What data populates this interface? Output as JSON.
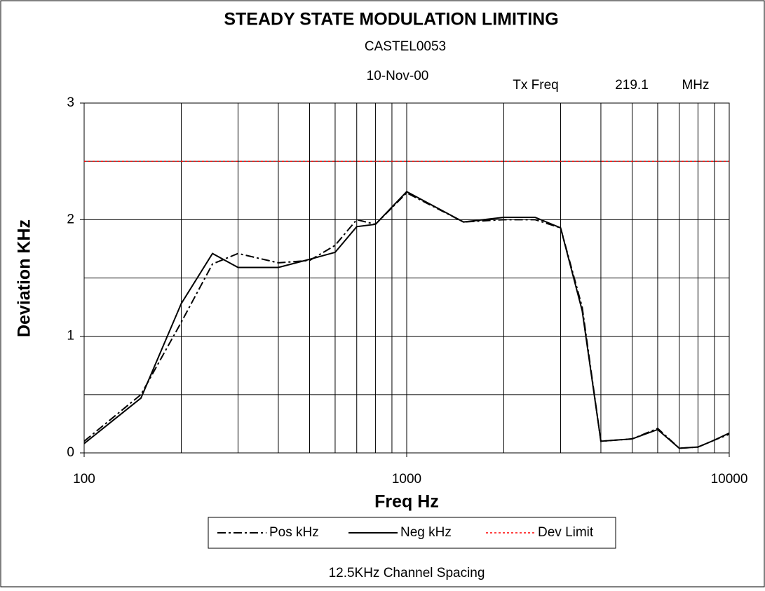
{
  "chart_data": {
    "type": "line",
    "title": "STEADY STATE MODULATION LIMITING",
    "subtitle": "CASTEL0053",
    "annotations": [
      "10-Nov-00",
      "Tx Freq",
      "219.1",
      "MHz"
    ],
    "footer": "12.5KHz Channel Spacing",
    "x_label": "Freq Hz",
    "y_label": "Deviation KHz",
    "x": [
      100,
      150,
      200,
      250,
      300,
      400,
      500,
      600,
      700,
      800,
      1000,
      1500,
      2000,
      2500,
      3000,
      3500,
      4000,
      5000,
      6000,
      7000,
      8000,
      9000,
      10000
    ],
    "series": [
      {
        "name": "Pos kHz",
        "color": "#000000",
        "dash": "12,4,3,4",
        "values": [
          0.1,
          0.5,
          1.12,
          1.62,
          1.71,
          1.63,
          1.65,
          1.78,
          2.0,
          1.96,
          2.23,
          1.98,
          2.0,
          2.0,
          1.93,
          1.25,
          0.1,
          0.12,
          0.21,
          0.04,
          0.05,
          0.11,
          0.16
        ]
      },
      {
        "name": "Neg kHz",
        "color": "#000000",
        "dash": "none",
        "values": [
          0.08,
          0.47,
          1.28,
          1.71,
          1.59,
          1.59,
          1.66,
          1.72,
          1.94,
          1.96,
          2.24,
          1.98,
          2.02,
          2.02,
          1.93,
          1.22,
          0.1,
          0.12,
          0.2,
          0.04,
          0.05,
          0.11,
          0.17
        ]
      },
      {
        "name": "Dev Limit",
        "color": "#ff0000",
        "dash": "3,3",
        "values": [
          2.5,
          2.5,
          2.5,
          2.5,
          2.5,
          2.5,
          2.5,
          2.5,
          2.5,
          2.5,
          2.5,
          2.5,
          2.5,
          2.5,
          2.5,
          2.5,
          2.5,
          2.5,
          2.5,
          2.5,
          2.5,
          2.5,
          2.5
        ]
      }
    ],
    "xlim": [
      100,
      10000
    ],
    "xticks": [
      100,
      1000,
      10000
    ],
    "log_x": true,
    "xgrid": [
      200,
      300,
      400,
      500,
      600,
      700,
      800,
      900,
      2000,
      3000,
      4000,
      5000,
      6000,
      7000,
      8000,
      9000
    ],
    "ylim": [
      0,
      3
    ],
    "yticks": [
      0,
      1,
      2,
      3
    ],
    "ygrid": [
      0.5,
      1,
      1.5,
      2,
      2.5
    ],
    "grid": true,
    "legend": "bottom"
  }
}
